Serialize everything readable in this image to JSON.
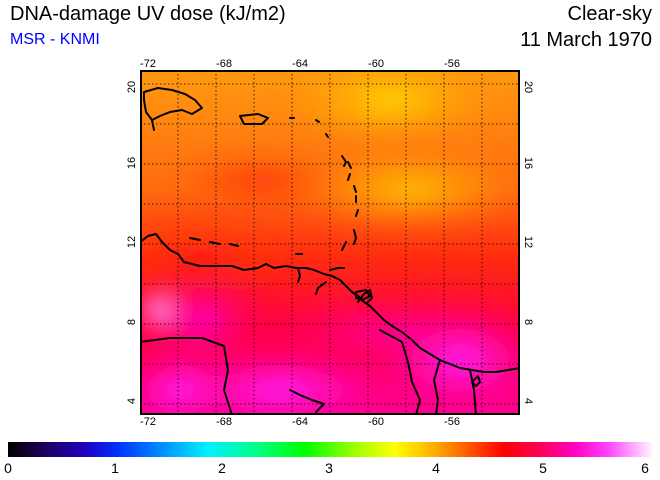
{
  "header": {
    "title": "DNA-damage UV dose (kJ/m2)",
    "source": "MSR - KNMI",
    "condition": "Clear-sky",
    "date": "11 March 1970"
  },
  "map": {
    "lon_ticks_top": [
      "-72",
      "-68",
      "-64",
      "-60",
      "-56"
    ],
    "lon_ticks_bottom": [
      "-72",
      "-68",
      "-64",
      "-60",
      "-56"
    ],
    "lat_ticks_left": [
      "20",
      "16",
      "12",
      "8",
      "4"
    ],
    "lat_ticks_right": [
      "20",
      "16",
      "12",
      "8",
      "4"
    ],
    "lon_range": [
      -72,
      -52
    ],
    "lat_range": [
      3.5,
      20.5
    ],
    "graticule": "dotted, 2-degree spacing",
    "region": "Caribbean Sea and northern South America"
  },
  "colorbar": {
    "labels": [
      "0",
      "1",
      "2",
      "3",
      "4",
      "5",
      "6"
    ],
    "range": [
      0,
      6
    ],
    "colors": [
      "#000000",
      "#2a00a0",
      "#0000ff",
      "#0080ff",
      "#00ffff",
      "#00ff80",
      "#00ff00",
      "#80ff00",
      "#ffff00",
      "#ffa000",
      "#ff0000",
      "#ff0080",
      "#ff00ff",
      "#ffffff"
    ]
  }
}
